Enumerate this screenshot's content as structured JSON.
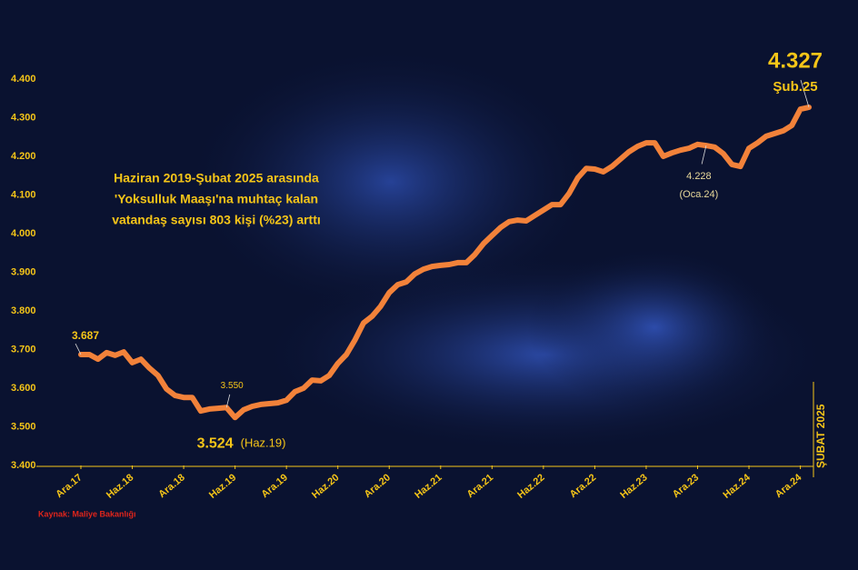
{
  "chart_data": {
    "type": "line",
    "title_lines": [
      "Haziran 2019-Şubat 2025 arasında",
      "'Yoksulluk Maaşı'na muhtaç kalan",
      "vatandaş sayısı 803 kişi (%23) arttı"
    ],
    "source": "Kaynak: Maliye Bakanlığı",
    "side_label": "ŞUBAT 2025",
    "point_notes": [
      "(Haz.19)",
      "(Oca.24)",
      "Şub.25"
    ],
    "categories": [
      "Ara.17",
      null,
      null,
      null,
      null,
      null,
      "Haz.18",
      null,
      null,
      null,
      null,
      null,
      "Ara.18",
      null,
      null,
      null,
      null,
      null,
      "Haz.19",
      null,
      null,
      null,
      null,
      null,
      "Ara.19",
      null,
      null,
      null,
      null,
      null,
      "Haz.20",
      null,
      null,
      null,
      null,
      null,
      "Ara.20",
      null,
      null,
      null,
      null,
      null,
      "Haz.21",
      null,
      null,
      null,
      null,
      null,
      "Ara.21",
      null,
      null,
      null,
      null,
      null,
      "Haz.22",
      null,
      null,
      null,
      null,
      null,
      "Ara.22",
      null,
      null,
      null,
      null,
      null,
      "Haz.23",
      null,
      null,
      null,
      null,
      null,
      "Ara.23",
      null,
      null,
      null,
      null,
      null,
      "Haz.24",
      null,
      null,
      null,
      null,
      null,
      "Ara.24",
      null
    ],
    "values": [
      3687,
      3687,
      3675,
      3692,
      3685,
      3694,
      3666,
      3675,
      3652,
      3633,
      3598,
      3581,
      3576,
      3576,
      3541,
      3546,
      3548,
      3550,
      3524,
      3544,
      3553,
      3558,
      3560,
      3562,
      3569,
      3591,
      3600,
      3621,
      3619,
      3633,
      3664,
      3687,
      3725,
      3769,
      3786,
      3812,
      3847,
      3868,
      3875,
      3896,
      3908,
      3915,
      3918,
      3920,
      3925,
      3925,
      3946,
      3974,
      3995,
      4016,
      4031,
      4035,
      4033,
      4047,
      4061,
      4075,
      4075,
      4104,
      4144,
      4169,
      4167,
      4160,
      4174,
      4193,
      4212,
      4226,
      4235,
      4235,
      4200,
      4209,
      4216,
      4221,
      4231,
      4228,
      4224,
      4207,
      4179,
      4174,
      4221,
      4235,
      4252,
      4259,
      4266,
      4280,
      4322,
      4327
    ],
    "value_labels": [
      "3.687",
      null,
      null,
      null,
      null,
      null,
      null,
      null,
      null,
      null,
      null,
      null,
      null,
      null,
      null,
      null,
      null,
      "3.550",
      "3.524",
      null,
      null,
      null,
      null,
      null,
      null,
      null,
      null,
      null,
      null,
      null,
      null,
      null,
      null,
      null,
      null,
      null,
      null,
      null,
      null,
      null,
      null,
      null,
      null,
      null,
      null,
      null,
      null,
      null,
      null,
      null,
      null,
      null,
      null,
      null,
      null,
      null,
      null,
      null,
      null,
      null,
      null,
      null,
      null,
      null,
      null,
      null,
      null,
      null,
      null,
      null,
      null,
      null,
      null,
      "4.228",
      null,
      null,
      null,
      null,
      null,
      null,
      null,
      null,
      null,
      null,
      null,
      "4.327"
    ],
    "color": "#f2823a",
    "ylim": [
      3400,
      4400
    ],
    "yticks": [
      {
        "value": 3400,
        "label": "3.400"
      },
      {
        "value": 3500,
        "label": "3.500"
      },
      {
        "value": 3600,
        "label": "3.600"
      },
      {
        "value": 3700,
        "label": "3.700"
      },
      {
        "value": 3800,
        "label": "3.800"
      },
      {
        "value": 3900,
        "label": "3.900"
      },
      {
        "value": 4000,
        "label": "4.000"
      },
      {
        "value": 4100,
        "label": "4.100"
      },
      {
        "value": 4200,
        "label": "4.200"
      },
      {
        "value": 4300,
        "label": "4.300"
      },
      {
        "value": 4400,
        "label": "4.400"
      }
    ],
    "grid": false
  }
}
